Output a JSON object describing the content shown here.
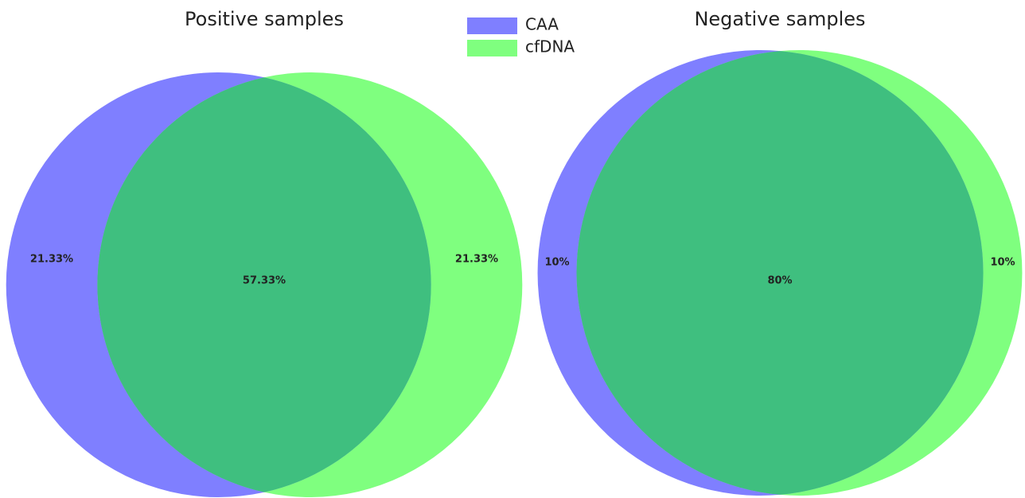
{
  "legend": [
    {
      "name": "CAA",
      "color": "#0000ff"
    },
    {
      "name": "cfDNA",
      "color": "#00ff00"
    }
  ],
  "chart_data": [
    {
      "type": "venn",
      "title": "Positive samples",
      "values": [
        21.33,
        21.33,
        57.33
      ],
      "value_labels": [
        "21.33%",
        "21.33%",
        "57.33%"
      ]
    },
    {
      "type": "venn",
      "title": "Negative samples",
      "values": [
        10,
        10,
        80
      ],
      "value_labels": [
        "10%",
        "10%",
        "80%"
      ]
    }
  ]
}
